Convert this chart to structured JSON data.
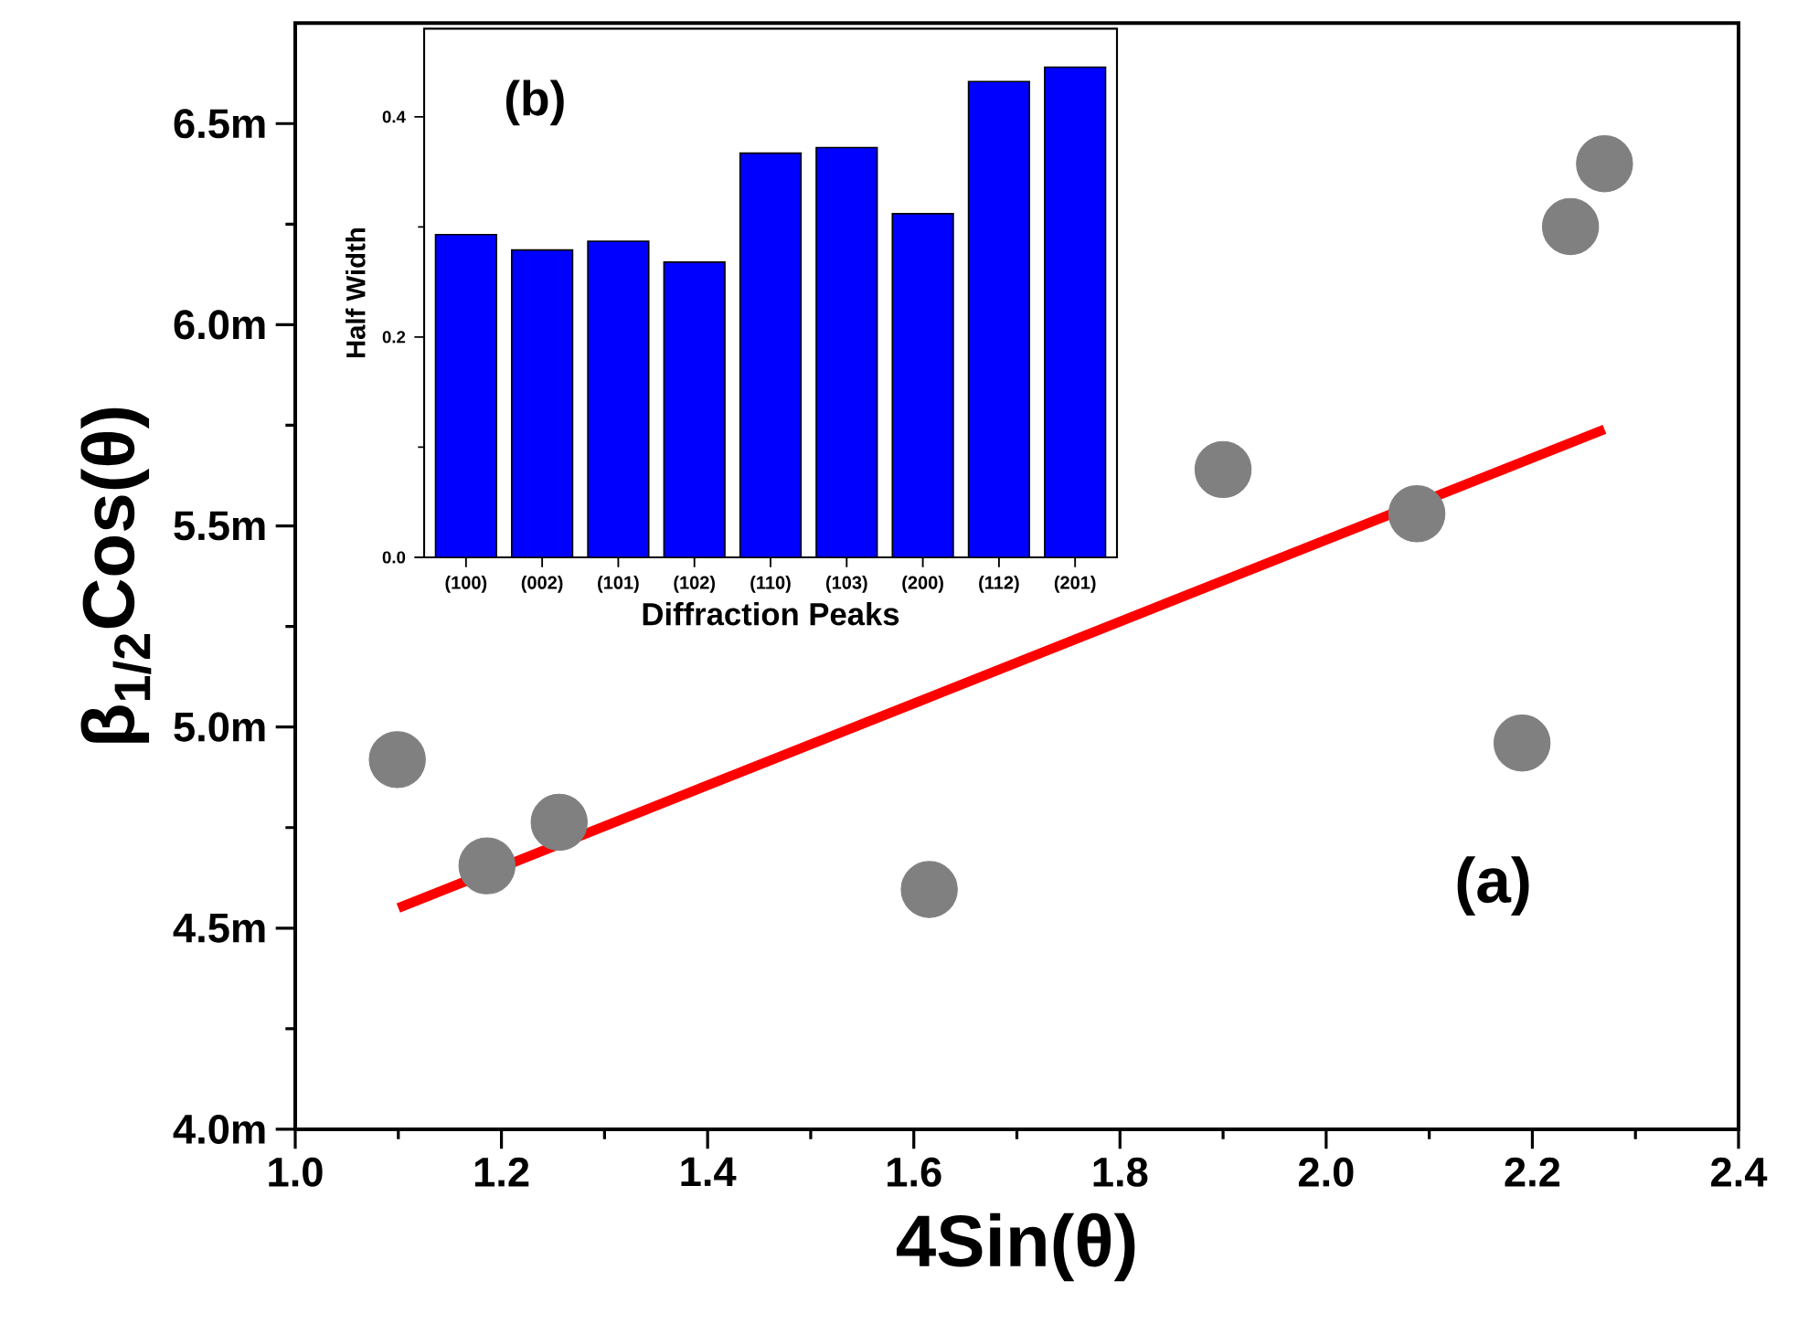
{
  "chart_data": [
    {
      "type": "scatter",
      "xlabel": "4Sin(θ)",
      "ylabel": "β$_{1/2}$Cos(θ)",
      "xlim": [
        1.0,
        2.4
      ],
      "xticks": [
        {
          "value": 1.0,
          "label": "1.0"
        },
        1.2,
        1.4,
        1.6,
        1.8,
        {
          "value": 2.0,
          "label": "2.0"
        },
        2.2,
        2.4
      ],
      "ylim": [
        4.0,
        6.75
      ],
      "yticks": [
        {
          "value": 4.0,
          "label": "4.0m"
        },
        {
          "value": 4.5,
          "label": "4.5m"
        },
        {
          "value": 5.0,
          "label": "5.0m"
        },
        {
          "value": 5.5,
          "label": "5.5m"
        },
        {
          "value": 6.0,
          "label": "6.0m"
        },
        {
          "value": 6.5,
          "label": "6.5m"
        }
      ],
      "series": [
        {
          "type": "scatter",
          "marker": "circle",
          "color": "#808080",
          "x": [
            1.099,
            1.186,
            1.256,
            1.615,
            1.9,
            2.088,
            2.19,
            2.237,
            2.27
          ],
          "values": [
            4.919,
            4.655,
            4.763,
            4.596,
            5.64,
            5.53,
            4.96,
            6.244,
            6.4
          ]
        },
        {
          "type": "line",
          "marker": "none",
          "color": "#ff0000",
          "x": [
            1.1,
            2.27
          ],
          "values": [
            4.55,
            5.74
          ]
        }
      ],
      "annotations": [
        "(a)"
      ]
    },
    {
      "type": "bar",
      "xlabel": "Diffraction Peaks",
      "ylabel": "Half Width",
      "categories": [
        "(100)",
        "(002)",
        "(101)",
        "(102)",
        "(110)",
        "(103)",
        "(200)",
        "(112)",
        "(201)"
      ],
      "values": [
        0.293,
        0.279,
        0.287,
        0.268,
        0.367,
        0.372,
        0.312,
        0.432,
        0.445
      ],
      "color": "#0000ff",
      "ylim": [
        0,
        0.48
      ],
      "yticks": [
        {
          "value": 0,
          "label": "0.0"
        },
        {
          "value": 0.2,
          "label": "0.2"
        },
        {
          "value": 0.4,
          "label": "0.4"
        }
      ],
      "annotations": [
        "(b)"
      ]
    }
  ]
}
